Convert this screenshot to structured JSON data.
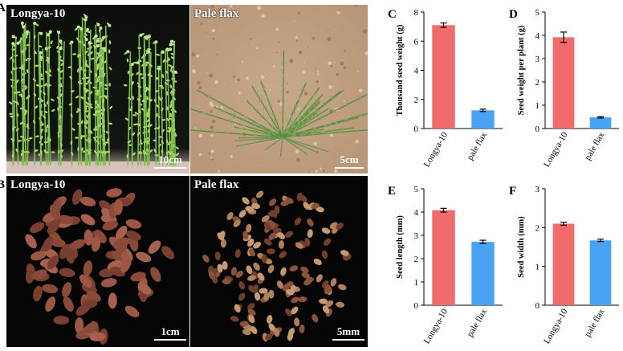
{
  "panels": {
    "a": {
      "letter": "A",
      "label": "Longya-10",
      "scale": "10cm"
    },
    "b": {
      "label": "Pale flax",
      "scale": "5cm"
    },
    "c": {
      "label": "Longya-10",
      "scale": "1cm"
    },
    "d": {
      "label": "Pale flax",
      "scale": "5mm"
    },
    "row2_letter": "B"
  },
  "colors": {
    "longya": "#f26b6b",
    "pale": "#4aa2f5"
  },
  "chart_data": [
    {
      "letter": "C",
      "type": "bar",
      "ylabel": "Thousand seed weight (g)",
      "categories": [
        "Longya-10",
        "pale flax"
      ],
      "values": [
        7.1,
        1.25
      ],
      "errors": [
        0.15,
        0.08
      ],
      "ylim": [
        0,
        8
      ],
      "yticks": [
        "0",
        "2",
        "4",
        "6",
        "8"
      ]
    },
    {
      "letter": "D",
      "type": "bar",
      "ylabel": "Seed weight per plant (g)",
      "categories": [
        "Longya-10",
        "pale flax"
      ],
      "values": [
        3.92,
        0.48
      ],
      "errors": [
        0.22,
        0.03
      ],
      "ylim": [
        0,
        5
      ],
      "yticks": [
        "0",
        "1",
        "2",
        "3",
        "4",
        "5"
      ]
    },
    {
      "letter": "E",
      "type": "bar",
      "ylabel": "Seed length (mm)",
      "categories": [
        "Longya-10",
        "pale flax"
      ],
      "values": [
        4.08,
        2.72
      ],
      "errors": [
        0.08,
        0.07
      ],
      "ylim": [
        0,
        5
      ],
      "yticks": [
        "0",
        "1",
        "2",
        "3",
        "4",
        "5"
      ]
    },
    {
      "letter": "F",
      "type": "bar",
      "ylabel": "Seed width (mm)",
      "categories": [
        "Longya-10",
        "pale flax"
      ],
      "values": [
        2.1,
        1.67
      ],
      "errors": [
        0.04,
        0.03
      ],
      "ylim": [
        0,
        3
      ],
      "yticks": [
        "0",
        "1",
        "2",
        "3"
      ]
    }
  ]
}
